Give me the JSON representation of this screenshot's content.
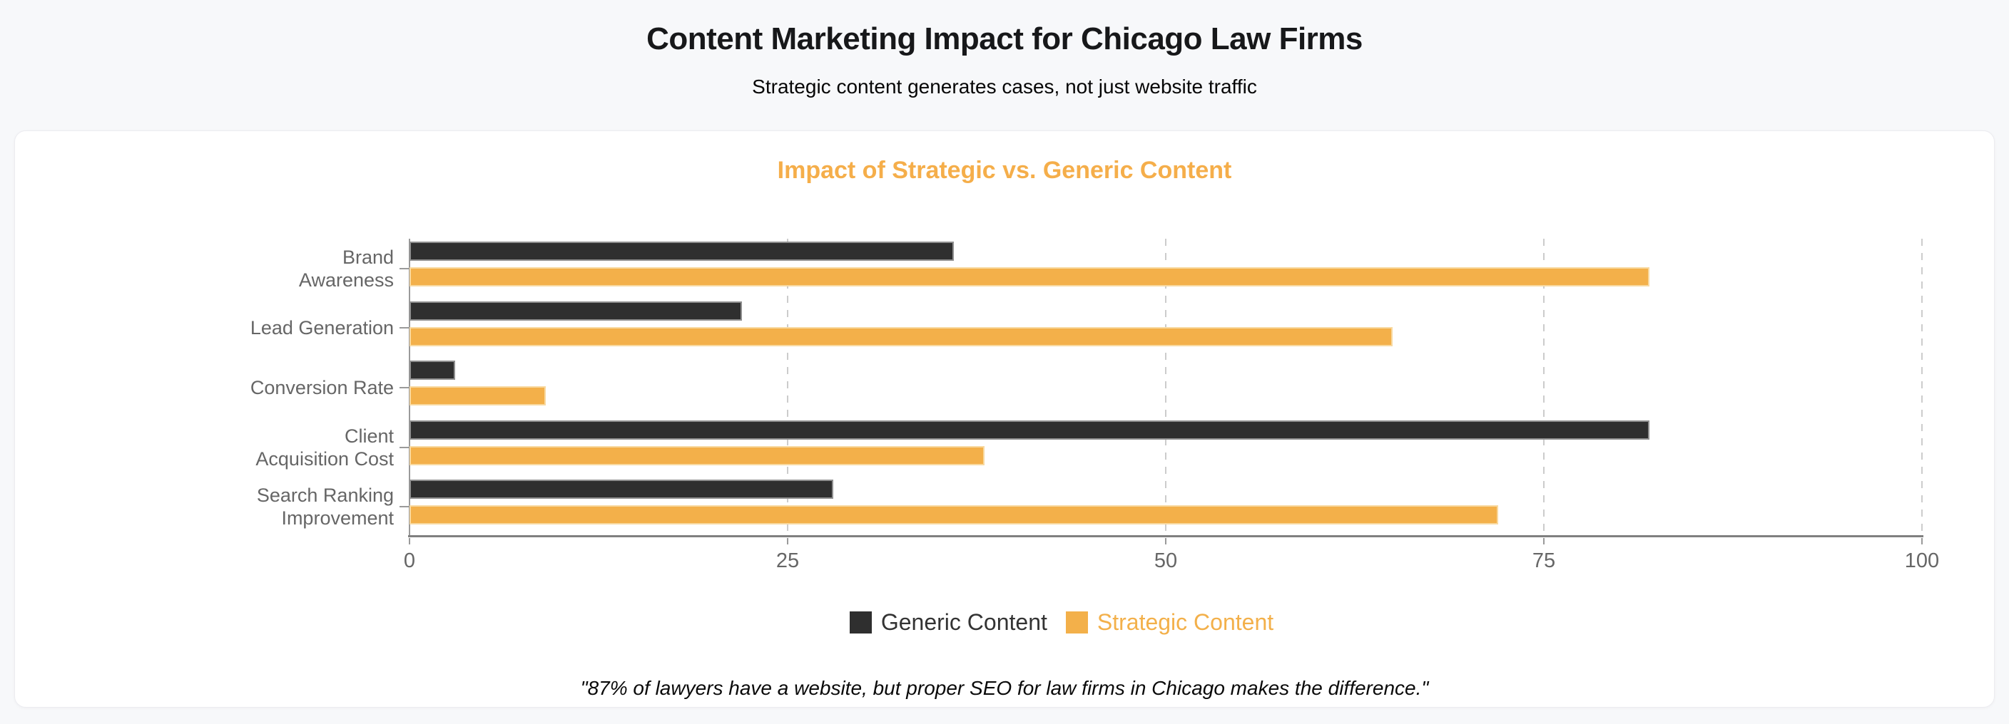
{
  "page": {
    "title": "Content Marketing Impact for Chicago Law Firms",
    "subtitle": "Strategic content generates cases, not just website traffic",
    "footer_quote": "\"87% of lawyers have a website, but proper SEO for law firms in Chicago makes the difference.\"",
    "background_color": "#f7f8fa",
    "card_color": "#ffffff"
  },
  "chart_data": {
    "type": "bar",
    "orientation": "horizontal",
    "title": "Impact of Strategic vs. Generic Content",
    "title_color": "#f5ae4a",
    "categories": [
      "Brand Awareness",
      "Lead Generation",
      "Conversion Rate",
      "Client Acquisition Cost",
      "Search Ranking Improvement"
    ],
    "category_label_lines": [
      [
        "Brand",
        "Awareness"
      ],
      [
        "Lead Generation"
      ],
      [
        "Conversion Rate"
      ],
      [
        "Client",
        "Acquisition Cost"
      ],
      [
        "Search Ranking",
        "Improvement"
      ]
    ],
    "series": [
      {
        "name": "Generic Content",
        "color": "#2f2f2f",
        "border_color": "#8f8f8f",
        "values": [
          36,
          22,
          3,
          82,
          28
        ]
      },
      {
        "name": "Strategic Content",
        "color": "#f3b04a",
        "border_color": "#f8d9a0",
        "values": [
          82,
          65,
          9,
          38,
          72
        ]
      }
    ],
    "x_axis": {
      "min": 0,
      "max": 100,
      "ticks": [
        0,
        25,
        50,
        75,
        100
      ]
    },
    "grid": "vertical-dashed",
    "legend_position": "bottom",
    "axis_color": "#808080",
    "grid_color": "#cccccc",
    "label_color": "#666666"
  }
}
